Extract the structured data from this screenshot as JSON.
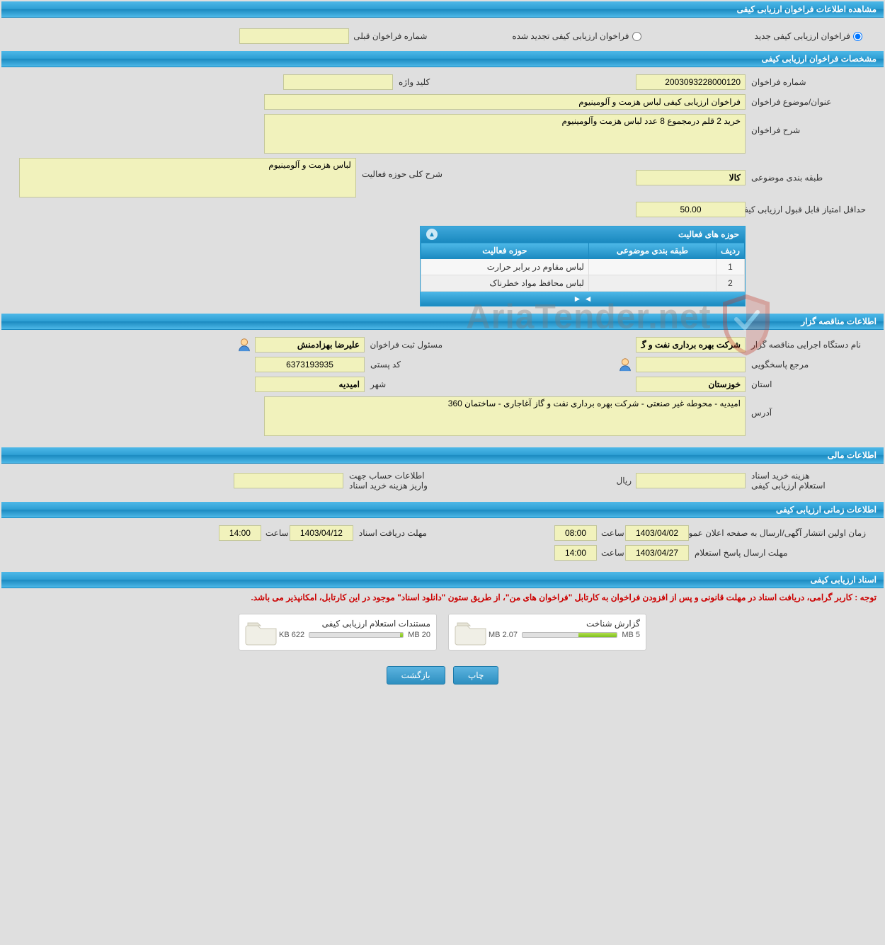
{
  "header": {
    "title": "مشاهده اطلاعات فراخوان ارزیابی کیفی"
  },
  "radios": {
    "new_label": "فراخوان ارزیابی کیفی جدید",
    "renewed_label": "فراخوان ارزیابی کیفی تجدید شده",
    "prev_number_label": "شماره فراخوان قبلی",
    "prev_number_value": ""
  },
  "spec": {
    "header": "مشخصات فراخوان ارزیابی کیفی",
    "number_label": "شماره فراخوان",
    "number_value": "2003093228000120",
    "keyword_label": "کلید واژه",
    "keyword_value": "",
    "subject_label": "عنوان/موضوع فراخوان",
    "subject_value": "فراخوان ارزیابی کیفی لباس هزمت و آلومینیوم",
    "desc_label": "شرح فراخوان",
    "desc_value": "خرید 2 قلم درمجموع 8 عدد لباس هزمت وآلومینیوم",
    "category_label": "طبقه بندی موضوعی",
    "category_value": "کالا",
    "area_label": "شرح کلی حوزه فعالیت",
    "area_value": "لباس هزمت و آلومینیوم",
    "min_score_label": "حداقل امتیاز قابل قبول ارزیابی کیفی",
    "min_score_value": "50.00",
    "panel_title": "حوزه های فعالیت",
    "table": {
      "col_row": "ردیف",
      "col_category": "طبقه بندی موضوعی",
      "col_activity": "حوزه فعالیت",
      "rows": [
        {
          "n": "1",
          "category": "",
          "activity": "لباس مقاوم در برابر حرارت"
        },
        {
          "n": "2",
          "category": "",
          "activity": "لباس محافظ مواد خطرناک"
        }
      ]
    }
  },
  "org": {
    "header": "اطلاعات مناقصه گزار",
    "exec_label": "نام دستگاه اجرایی مناقصه گزار",
    "exec_value": "شرکت بهره برداری نفت و گ",
    "reg_label": "مسئول ثبت فراخوان",
    "reg_value": "علیرضا بهزادمنش",
    "responder_label": "مرجع پاسخگویی",
    "responder_value": "",
    "postal_label": "کد پستی",
    "postal_value": "6373193935",
    "province_label": "استان",
    "province_value": "خوزستان",
    "city_label": "شهر",
    "city_value": "امیدیه",
    "address_label": "آدرس",
    "address_value": "امیدیه - محوطه غیر صنعتی - شرکت بهره برداری نفت و گاز آغاجاری - ساختمان 360"
  },
  "financial": {
    "header": "اطلاعات مالی",
    "doc_cost_label1": "هزینه خرید اسناد",
    "doc_cost_label2": "استعلام ارزیابی کیفی",
    "doc_cost_value": "",
    "currency": "ریال",
    "account_label1": "اطلاعات حساب جهت",
    "account_label2": "واریز هزینه خرید اسناد",
    "account_value": ""
  },
  "timing": {
    "header": "اطلاعات زمانی ارزیابی کیفی",
    "publish_label": "زمان اولین انتشار آگهی/ارسال به صفحه اعلان عمومی",
    "publish_date": "1403/04/02",
    "publish_time": "08:00",
    "deadline_label": "مهلت دریافت اسناد",
    "deadline_date": "1403/04/12",
    "deadline_time": "14:00",
    "response_label": "مهلت ارسال پاسخ استعلام",
    "response_date": "1403/04/27",
    "response_time": "14:00",
    "time_label": "ساعت"
  },
  "docs": {
    "header": "اسناد ارزیابی کیفی",
    "notice": "توجه : کاربر گرامی، دریافت اسناد در مهلت قانونی و پس از افزودن فراخوان به کارتابل \"فراخوان های من\"، از طریق ستون \"دانلود اسناد\" موجود در این کارتابل، امکانپذیر می باشد.",
    "files": [
      {
        "title": "گزارش شناخت",
        "used": "2.07 MB",
        "total": "5 MB",
        "fill_pct": 41
      },
      {
        "title": "مستندات استعلام ارزیابی کیفی",
        "used": "622 KB",
        "total": "20 MB",
        "fill_pct": 3
      }
    ]
  },
  "buttons": {
    "print": "چاپ",
    "back": "بازگشت"
  },
  "colors": {
    "header_grad_top": "#4db8e8",
    "header_grad_bot": "#1b8ac0",
    "field_bg": "#f1f2bc",
    "page_bg": "#dfdfdf",
    "notice": "#c00",
    "bar_fill": "#7dc020"
  },
  "watermark": {
    "text": "AriaTender.net"
  }
}
